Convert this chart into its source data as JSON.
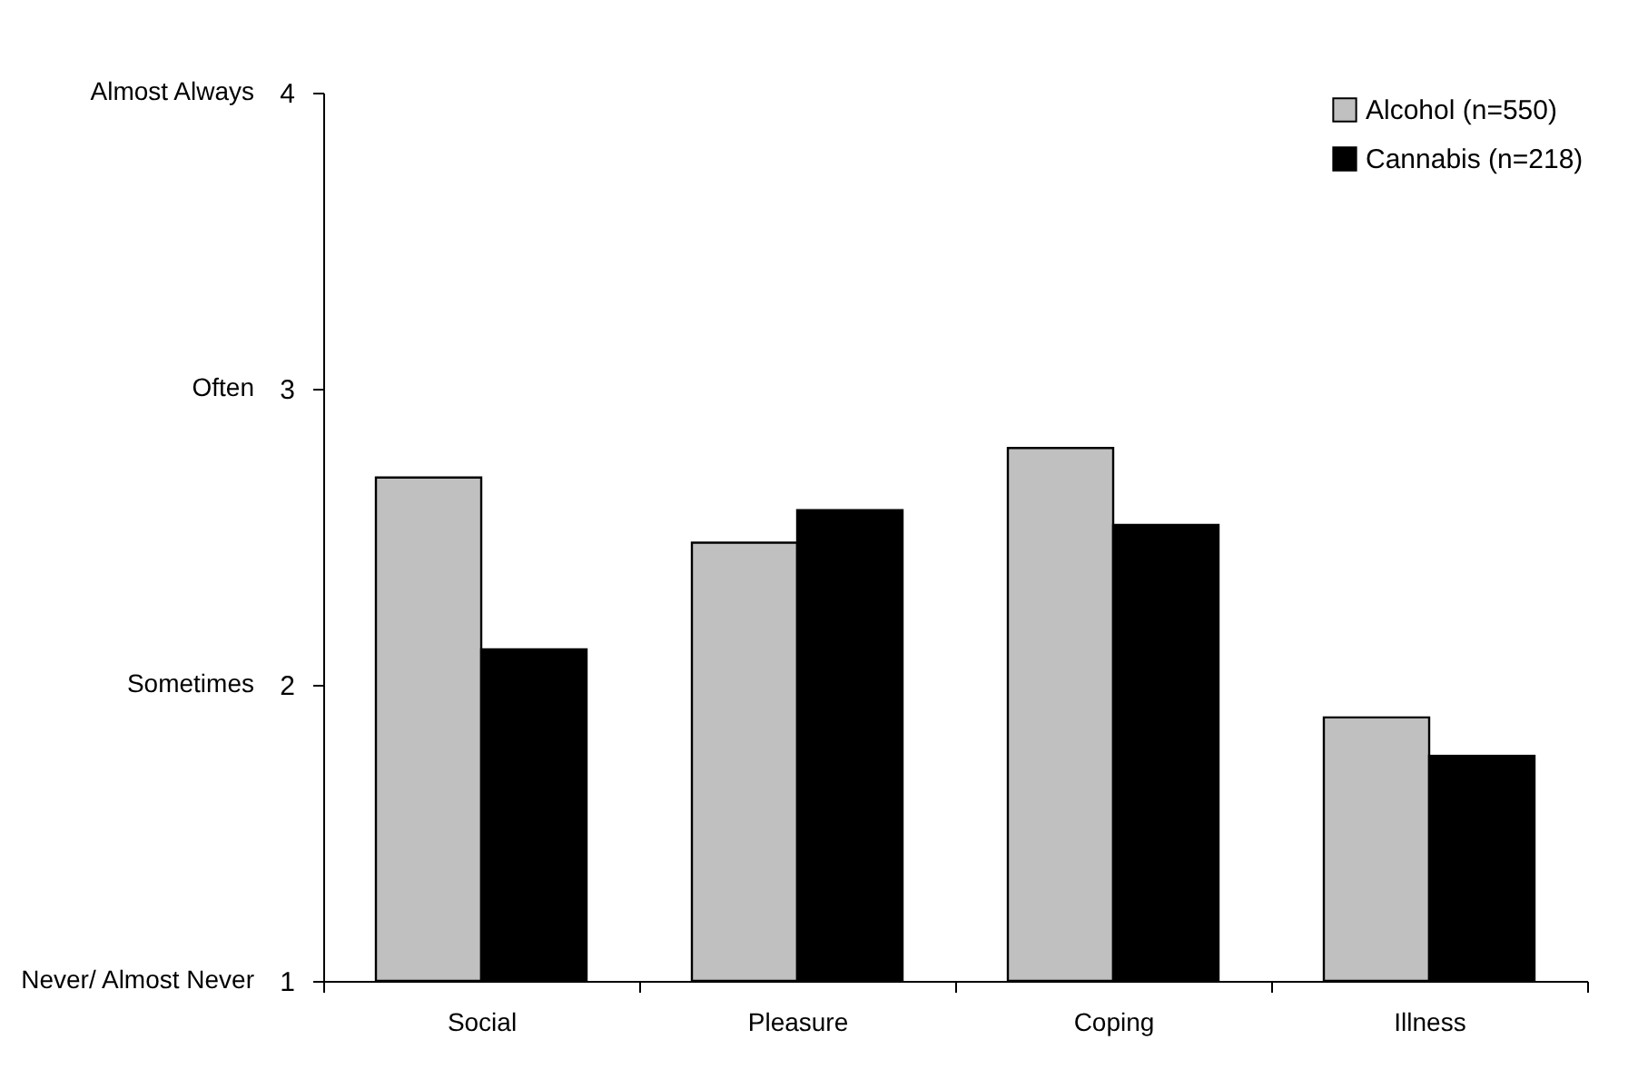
{
  "chart_data": {
    "type": "bar",
    "categories": [
      "Social",
      "Pleasure",
      "Coping",
      "Illness"
    ],
    "series": [
      {
        "name": "Alcohol (n=550)",
        "color": "#c0c0c0",
        "values": [
          2.7,
          2.48,
          2.8,
          1.89
        ]
      },
      {
        "name": "Cannabis (n=218)",
        "color": "#000000",
        "values": [
          2.12,
          2.59,
          2.54,
          1.76
        ]
      }
    ],
    "ylim": [
      1,
      4
    ],
    "yticks": [
      1,
      2,
      3,
      4
    ],
    "annotations": [
      "Never/ Almost Never",
      "Sometimes",
      "Often",
      "Almost Always"
    ],
    "legend": "top right"
  }
}
